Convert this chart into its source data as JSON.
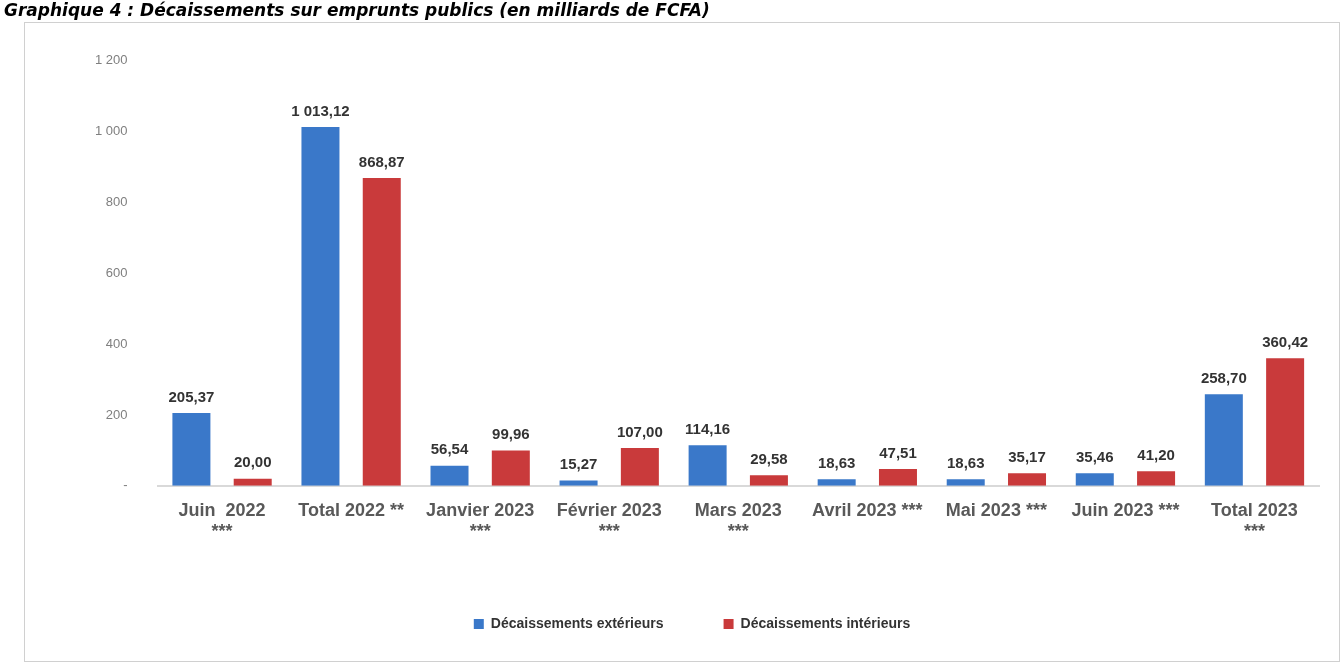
{
  "chart_data": {
    "type": "bar",
    "title": "Graphique 4 : Décaissements sur emprunts publics (en milliards de FCFA)",
    "categories": [
      "Juin  2022\n***",
      "Total 2022 **",
      "Janvier 2023\n***",
      "Février 2023\n***",
      "Mars 2023\n***",
      "Avril 2023 ***",
      "Mai 2023 ***",
      "Juin 2023 ***",
      "Total 2023\n***"
    ],
    "series": [
      {
        "name": "Décaissements extérieurs",
        "color": "#3a78c9",
        "values": [
          205.37,
          1013.12,
          56.54,
          15.27,
          114.16,
          18.63,
          18.63,
          35.46,
          258.7
        ],
        "value_labels": [
          "205,37",
          "1 013,12",
          "56,54",
          "15,27",
          "114,16",
          "18,63",
          "18,63",
          "35,46",
          "258,70"
        ]
      },
      {
        "name": "Décaissements intérieurs",
        "color": "#c93a3b",
        "values": [
          20.0,
          868.87,
          99.96,
          107.0,
          29.58,
          47.51,
          35.17,
          41.2,
          360.42
        ],
        "value_labels": [
          "20,00",
          "868,87",
          "99,96",
          "107,00",
          "29,58",
          "47,51",
          "35,17",
          "41,20",
          "360,42"
        ]
      }
    ],
    "ylim": [
      0,
      1200
    ],
    "yticks": [
      {
        "value": 0,
        "label": "-"
      },
      200,
      400,
      600,
      800,
      {
        "value": 1000,
        "label": "1 000"
      },
      {
        "value": 1200,
        "label": "1 200"
      }
    ],
    "grid": false,
    "legend": "bottom"
  }
}
